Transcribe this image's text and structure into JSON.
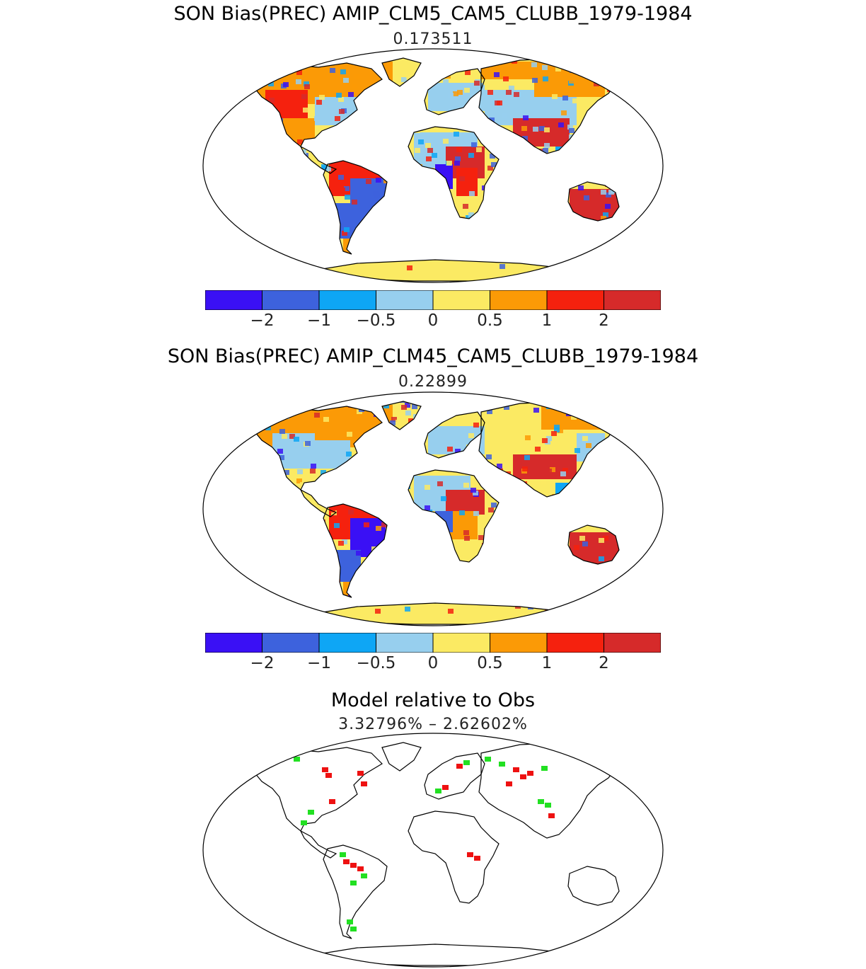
{
  "panels": [
    {
      "title": "SON Bias(PREC) AMIP_CLM5_CAM5_CLUBB_1979-1984",
      "stat": "0.173511"
    },
    {
      "title": "SON Bias(PREC) AMIP_CLM45_CAM5_CLUBB_1979-1984",
      "stat": "0.22899"
    },
    {
      "title": "Model relative to Obs",
      "stat": "3.32796% – 2.62602%"
    }
  ],
  "colorbar": {
    "colors": [
      "#3a10f5",
      "#3d62dd",
      "#0ea6f5",
      "#97cfee",
      "#fbea63",
      "#fb9a06",
      "#f5210e",
      "#d62a2a"
    ],
    "labels": [
      "−2",
      "−1",
      "−0.5",
      "0",
      "0.5",
      "1",
      "2"
    ]
  },
  "relative_colors": {
    "better": "#22e022",
    "worse": "#ee1111"
  }
}
